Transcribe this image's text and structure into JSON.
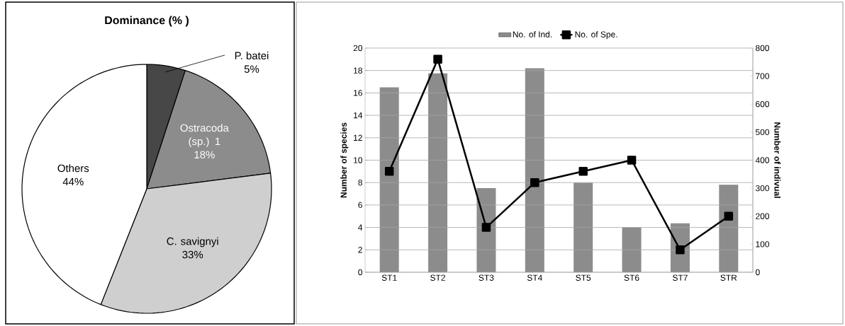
{
  "chart_data": [
    {
      "type": "pie",
      "title": "Dominance (% )",
      "categories": [
        "P. batei",
        "Ostracoda (sp.) 1",
        "C. savignyi",
        "Others"
      ],
      "values": [
        5,
        18,
        33,
        44
      ],
      "value_labels": [
        "5%",
        "18%",
        "33%",
        "44%"
      ],
      "colors": [
        "#474747",
        "#8c8c8c",
        "#cfcfcf",
        "#ffffff"
      ]
    },
    {
      "type": "bar",
      "categories": [
        "ST1",
        "ST2",
        "ST3",
        "ST4",
        "ST5",
        "ST6",
        "ST7",
        "STR"
      ],
      "series": [
        {
          "name": "No. of Ind.",
          "type": "bar",
          "axis": "y2",
          "color": "#8c8c8c",
          "values": [
            660,
            710,
            300,
            728,
            320,
            160,
            175,
            312
          ]
        },
        {
          "name": "No. of Spe.",
          "type": "line",
          "color": "#000000",
          "values": [
            9,
            19,
            4,
            8,
            9,
            10,
            2,
            5
          ]
        }
      ],
      "ylim": [
        0,
        20
      ],
      "yticks": [
        0,
        2,
        4,
        6,
        8,
        10,
        12,
        14,
        16,
        18,
        20
      ],
      "y2lim": [
        0,
        800
      ],
      "y2ticks": [
        0,
        100,
        200,
        300,
        400,
        500,
        600,
        700,
        800
      ],
      "ylabel": "Number of species",
      "y2label": "Number of indivual",
      "grid": "y",
      "legend": "top",
      "marker": "square"
    }
  ]
}
